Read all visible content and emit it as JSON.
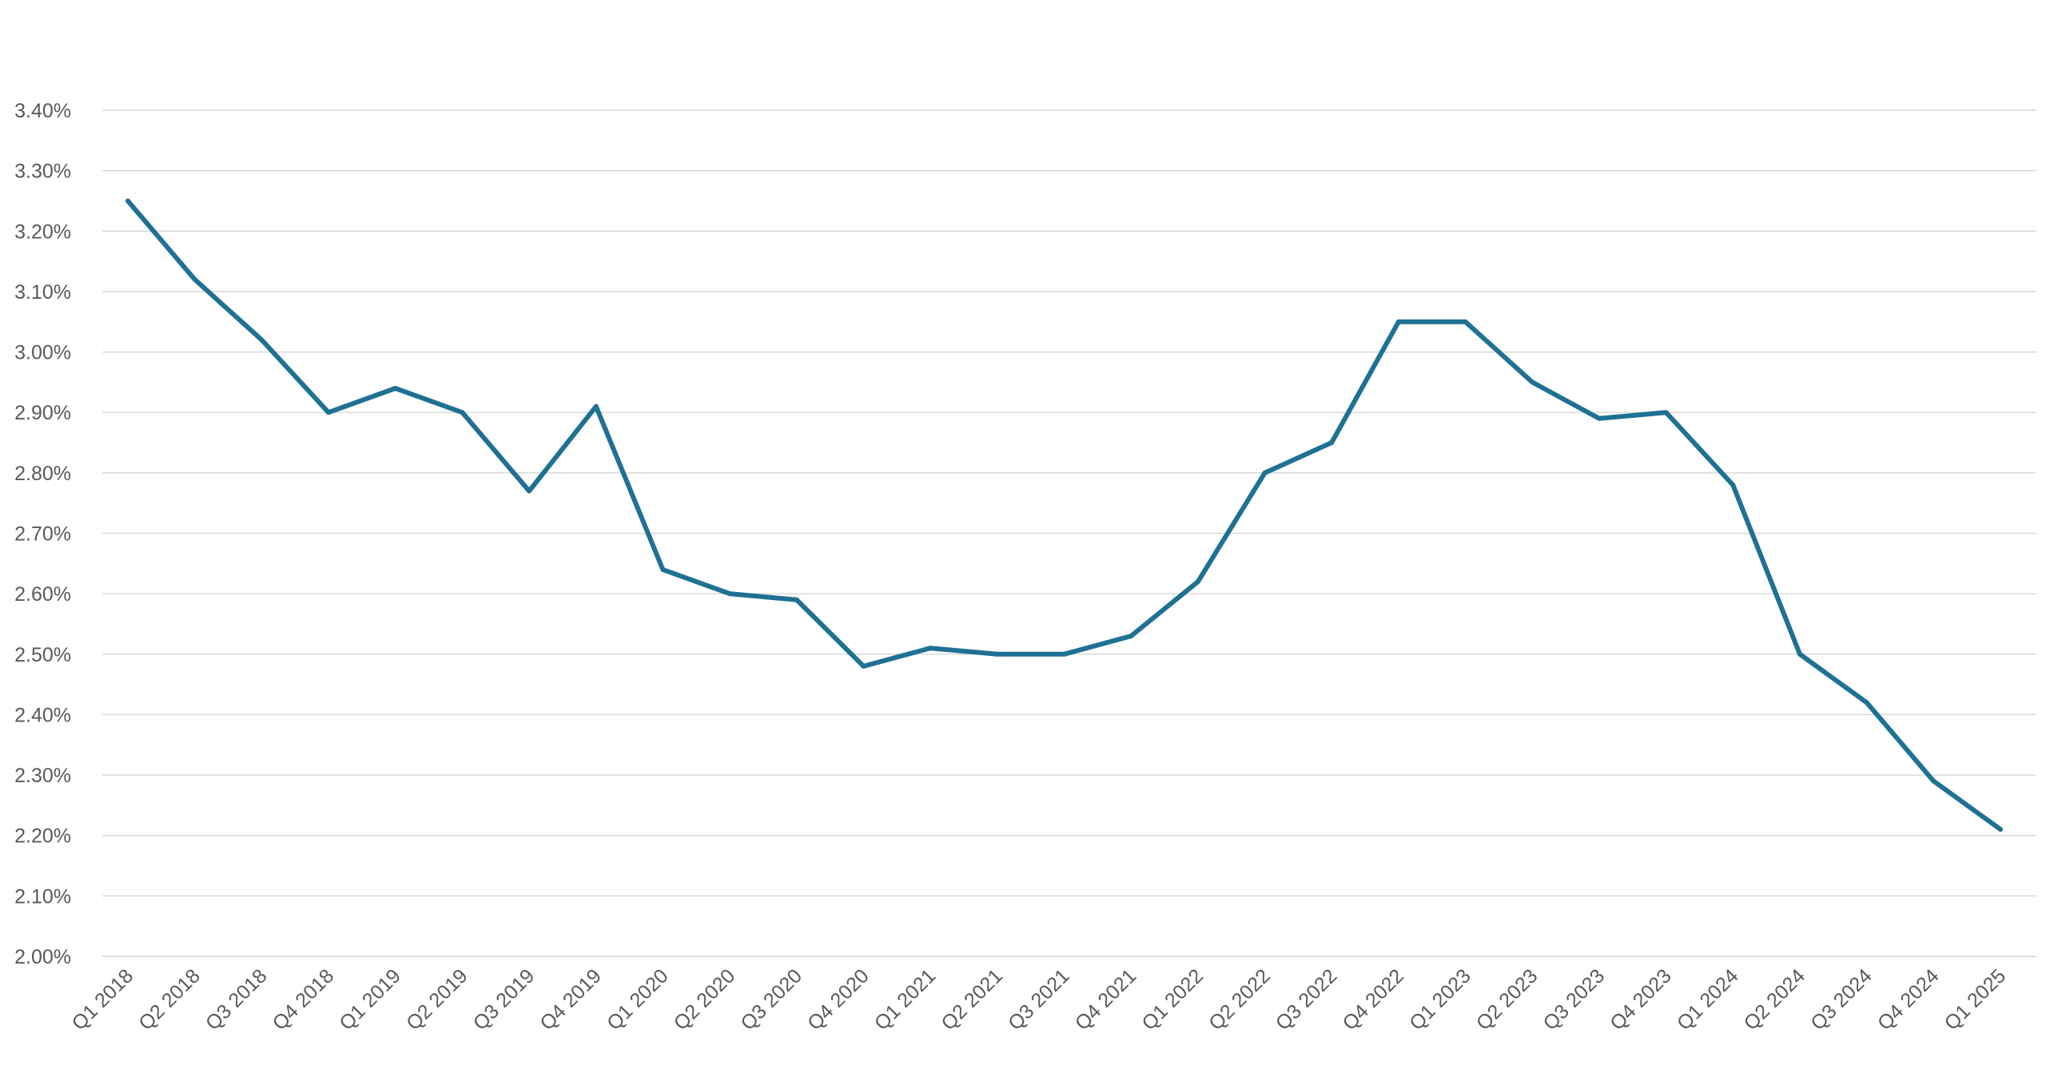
{
  "chart_data": {
    "type": "line",
    "title": "",
    "xlabel": "",
    "ylabel": "",
    "ylim": [
      0.02,
      0.034
    ],
    "y_ticks": [
      0.02,
      0.021,
      0.022,
      0.023,
      0.024,
      0.025,
      0.026,
      0.027,
      0.028,
      0.029,
      0.03,
      0.031,
      0.032,
      0.033,
      0.034
    ],
    "y_tick_labels": [
      "2.00%",
      "2.10%",
      "2.20%",
      "2.30%",
      "2.40%",
      "2.50%",
      "2.60%",
      "2.70%",
      "2.80%",
      "2.90%",
      "3.00%",
      "3.10%",
      "3.20%",
      "3.30%",
      "3.40%"
    ],
    "grid": true,
    "legend": "none",
    "categories": [
      "Q1 2018",
      "Q2 2018",
      "Q3 2018",
      "Q4 2018",
      "Q1 2019",
      "Q2 2019",
      "Q3 2019",
      "Q4 2019",
      "Q1 2020",
      "Q2 2020",
      "Q3 2020",
      "Q4 2020",
      "Q1 2021",
      "Q2 2021",
      "Q3 2021",
      "Q4 2021",
      "Q1 2022",
      "Q2 2022",
      "Q3 2022",
      "Q4 2022",
      "Q1 2023",
      "Q2 2023",
      "Q3 2023",
      "Q4 2023",
      "Q1 2024",
      "Q2 2024",
      "Q3 2024",
      "Q4 2024",
      "Q1 2025"
    ],
    "series": [
      {
        "color": "#1f7194",
        "values": [
          0.0325,
          0.0312,
          0.0302,
          0.029,
          0.0294,
          0.029,
          0.0277,
          0.0291,
          0.0264,
          0.026,
          0.0259,
          0.0248,
          0.0251,
          0.025,
          0.025,
          0.0253,
          0.0262,
          0.028,
          0.0285,
          0.0305,
          0.0305,
          0.0295,
          0.0289,
          0.029,
          0.0278,
          0.025,
          0.0242,
          0.0229,
          0.0221
        ]
      }
    ],
    "colors": {
      "gridline": "#d9d9d9",
      "label": "#595959"
    }
  }
}
